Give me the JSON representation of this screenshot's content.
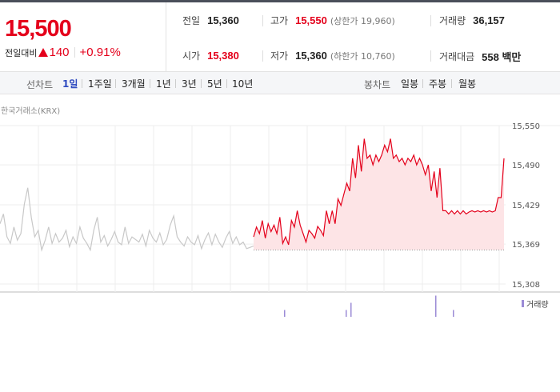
{
  "price": {
    "current": "15,500",
    "change_label": "전일대비",
    "change_abs": "140",
    "change_pct": "+0.91%"
  },
  "stats": {
    "prev_close_label": "전일",
    "prev_close": "15,360",
    "open_label": "시가",
    "open": "15,380",
    "high_label": "고가",
    "high": "15,550",
    "upper_limit": "(상한가 19,960)",
    "low_label": "저가",
    "low": "15,360",
    "lower_limit": "(하한가 10,760)",
    "volume_label": "거래량",
    "volume": "36,157",
    "amount_label": "거래대금",
    "amount": "558 백만"
  },
  "tabs": {
    "line_label": "선차트",
    "line": [
      "1일",
      "1주일",
      "3개월",
      "1년",
      "3년",
      "5년",
      "10년"
    ],
    "active": "1일",
    "candle_label": "봉차트",
    "candle": [
      "일봉",
      "주봉",
      "월봉"
    ]
  },
  "source": "한국거래소(KRX)",
  "colors": {
    "up": "#e4001b",
    "active_tab": "#2f4bc0",
    "prev_line": "#c8c8c8",
    "fill": "#fde4e6",
    "volume": "#9b8bd6"
  },
  "chart_data": {
    "type": "line",
    "y_ticks": [
      "15,550",
      "15,490",
      "15,429",
      "15,369",
      "15,308"
    ],
    "ylim": [
      15308,
      15550
    ],
    "prev_close": 15360,
    "series": [
      {
        "values": [
          15400,
          15415,
          15380,
          15370,
          15395,
          15375,
          15385,
          15430,
          15455,
          15410,
          15380,
          15390,
          15360,
          15375,
          15395,
          15370,
          15385,
          15372,
          15378,
          15390,
          15365,
          15380,
          15370,
          15395,
          15378,
          15370,
          15360,
          15390,
          15410,
          15372,
          15382,
          15366,
          15376,
          15388,
          15372,
          15368,
          15395,
          15370,
          15380,
          15376,
          15372,
          15384,
          15366,
          15390,
          15378,
          15372,
          15386,
          15368,
          15376,
          15398,
          15412,
          15380,
          15372,
          15366,
          15380,
          15372,
          15368,
          15382,
          15362,
          15376,
          15386,
          15368,
          15384,
          15372,
          15364,
          15378,
          15388,
          15370,
          15380,
          15368,
          15372,
          15362,
          15364,
          15366
        ]
      },
      {
        "values": [
          15380,
          15395,
          15385,
          15405,
          15378,
          15400,
          15388,
          15398,
          15385,
          15410,
          15370,
          15380,
          15368,
          15405,
          15395,
          15420,
          15398,
          15385,
          15372,
          15390,
          15385,
          15378,
          15396,
          15390,
          15382,
          15420,
          15400,
          15420,
          15400,
          15438,
          15428,
          15445,
          15462,
          15450,
          15500,
          15470,
          15520,
          15480,
          15530,
          15500,
          15505,
          15490,
          15505,
          15495,
          15505,
          15520,
          15510,
          15530,
          15500,
          15505,
          15495,
          15500,
          15490,
          15500,
          15495,
          15505,
          15490,
          15500,
          15490,
          15475,
          15490,
          15450,
          15480,
          15440,
          15485,
          15420,
          15420,
          15415,
          15420,
          15415,
          15420,
          15415,
          15420,
          15415,
          15418,
          15420,
          15418,
          15420,
          15418,
          15420,
          15418,
          15420,
          15418,
          15420,
          15440,
          15440,
          15500
        ]
      }
    ],
    "volume": [
      {
        "x": 355,
        "v": 1
      },
      {
        "x": 432,
        "v": 1
      },
      {
        "x": 438,
        "v": 3
      },
      {
        "x": 544,
        "v": 5
      },
      {
        "x": 566,
        "v": 1
      }
    ]
  }
}
